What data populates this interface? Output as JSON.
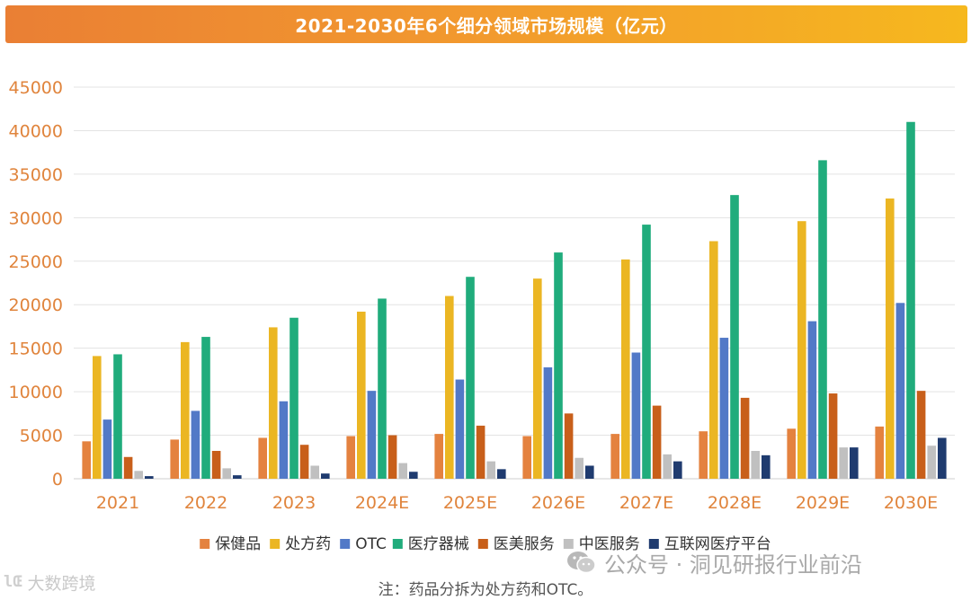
{
  "chart_data": {
    "type": "bar",
    "title": "2021-2030年6个细分领域市场规模（亿元）",
    "categories": [
      "2021",
      "2022",
      "2023",
      "2024E",
      "2025E",
      "2026E",
      "2027E",
      "2028E",
      "2029E",
      "2030E"
    ],
    "ylim": [
      0,
      45000
    ],
    "yticks": [
      "0",
      "5000",
      "10000",
      "15000",
      "20000",
      "25000",
      "30000",
      "35000",
      "40000",
      "45000"
    ],
    "grid": true,
    "legend_position": "bottom",
    "series": [
      {
        "name": "保健品",
        "color": "#e4823f",
        "values": [
          4300,
          4500,
          4700,
          4900,
          5150,
          4900,
          5150,
          5450,
          5750,
          6000
        ]
      },
      {
        "name": "处方药",
        "color": "#ebb623",
        "values": [
          14100,
          15700,
          17400,
          19200,
          21000,
          23000,
          25200,
          27300,
          29600,
          32200
        ]
      },
      {
        "name": "OTC",
        "color": "#5279c7",
        "values": [
          6800,
          7800,
          8900,
          10100,
          11400,
          12800,
          14500,
          16200,
          18100,
          20200
        ]
      },
      {
        "name": "医疗器械",
        "color": "#20ac7c",
        "values": [
          14300,
          16300,
          18500,
          20700,
          23200,
          26000,
          29200,
          32600,
          36600,
          41000
        ]
      },
      {
        "name": "医美服务",
        "color": "#c85f1a",
        "values": [
          2500,
          3200,
          3900,
          5000,
          6100,
          7500,
          8400,
          9300,
          9800,
          10100
        ]
      },
      {
        "name": "中医服务",
        "color": "#c0c0c0",
        "values": [
          900,
          1200,
          1500,
          1800,
          2000,
          2400,
          2800,
          3200,
          3600,
          3800
        ]
      },
      {
        "name": "互联网医疗平台",
        "color": "#1f3b6f",
        "values": [
          300,
          400,
          600,
          800,
          1100,
          1500,
          2000,
          2700,
          3600,
          4700
        ]
      }
    ]
  },
  "note": "注：药品分拆为处方药和OTC。",
  "watermarks": {
    "left_logo": "lŒ",
    "left_text": "大数跨境",
    "right_icon": "wechat-icon",
    "right_text": "公众号 · 洞见研报行业前沿"
  }
}
